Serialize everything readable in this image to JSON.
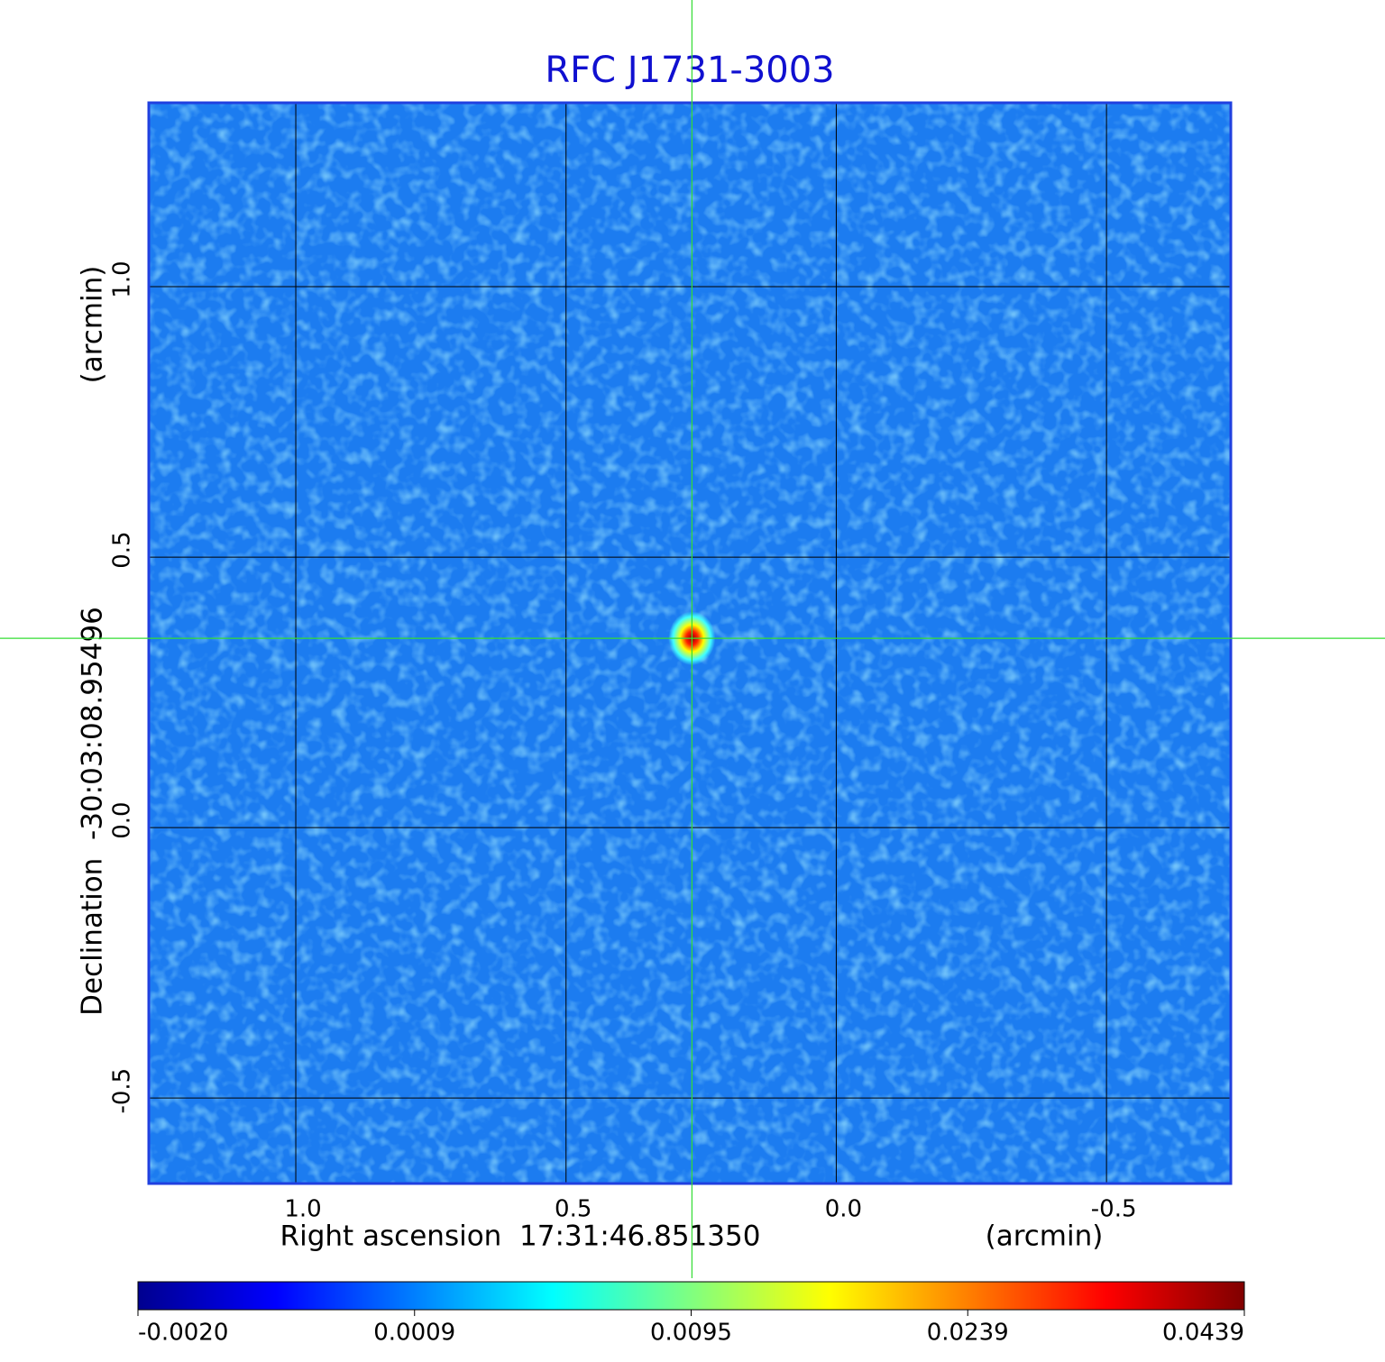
{
  "chart_data": {
    "type": "image",
    "title": "RFC J1731-3003",
    "x_label": "Right ascension  17:31:46.851350",
    "x_unit": "(arcmin)",
    "y_label": "Declination  -30:03:08.95496",
    "y_unit": "(arcmin)",
    "xlim": [
      1.272,
      -0.73
    ],
    "ylim": [
      -0.658,
      1.34
    ],
    "xticks": [
      {
        "value": 1,
        "label": "1.0"
      },
      0.5,
      {
        "value": 0,
        "label": "0.0"
      },
      -0.5
    ],
    "yticks": [
      {
        "value": 1,
        "label": "1.0"
      },
      0.5,
      {
        "value": 0,
        "label": "0.0"
      },
      -0.5
    ],
    "grid": true,
    "crosshair": {
      "x": 0.267,
      "y": 0.35,
      "color": "#33dd33"
    },
    "colormap": "jet",
    "colorbar_ticks": [
      {
        "value": -0.002,
        "label": "-0.0020"
      },
      0.0009,
      0.0095,
      0.0239,
      0.0439
    ]
  }
}
